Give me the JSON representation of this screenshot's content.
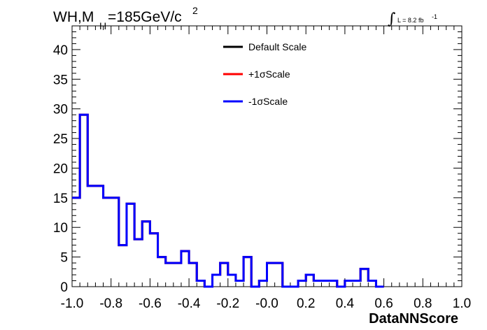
{
  "chart_data": {
    "type": "line",
    "title_main": "WH,M",
    "title_sub": "H",
    "title_rest": "=185GeV/c",
    "title_sup": "2",
    "lumi_symbol": "∫",
    "lumi_label": "L = 8.2 fb",
    "lumi_sup": "-1",
    "xlabel": "DataNNScore",
    "ylabel": "",
    "xlim": [
      -1.0,
      1.0
    ],
    "ylim": [
      0,
      44
    ],
    "x_ticks": [
      "-1.0",
      "-0.8",
      "-0.6",
      "-0.4",
      "-0.2",
      "-0.0",
      "0.2",
      "0.4",
      "0.6",
      "0.8",
      "1.0"
    ],
    "y_ticks": [
      "0",
      "5",
      "10",
      "15",
      "20",
      "25",
      "30",
      "35",
      "40"
    ],
    "bin_edges_start": -1.0,
    "bin_width": 0.04,
    "legend": [
      {
        "label": "Default Scale",
        "color": "#000000"
      },
      {
        "label": "+1σScale",
        "color": "#ff0000"
      },
      {
        "label": "-1σScale",
        "color": "#0000ff"
      }
    ],
    "series": [
      {
        "name": "Default Scale",
        "color": "#000000",
        "values": [
          15,
          29,
          17,
          17,
          15,
          15,
          7,
          14,
          8,
          11,
          9,
          5,
          4,
          4,
          6,
          4,
          1,
          0,
          2,
          4,
          2,
          1,
          5,
          0,
          1,
          4,
          4,
          0,
          0,
          1,
          2,
          1,
          1,
          1,
          0,
          1,
          1,
          3,
          1,
          0
        ]
      },
      {
        "name": "+1σScale",
        "color": "#ff0000",
        "values": [
          15,
          29,
          17,
          17,
          15,
          15,
          7,
          14,
          8,
          11,
          9,
          5,
          4,
          4,
          6,
          4,
          1,
          0,
          2,
          4,
          2,
          1,
          5,
          0,
          1,
          4,
          4,
          0,
          0,
          1,
          2,
          1,
          1,
          1,
          0,
          1,
          1,
          3,
          1,
          0
        ]
      },
      {
        "name": "-1σScale",
        "color": "#0000ff",
        "values": [
          15,
          29,
          17,
          17,
          15,
          15,
          7,
          14,
          8,
          11,
          9,
          5,
          4,
          4,
          6,
          4,
          1,
          0,
          2,
          4,
          2,
          1,
          5,
          0,
          1,
          4,
          4,
          0,
          0,
          1,
          2,
          1,
          1,
          1,
          0,
          1,
          1,
          3,
          1,
          0
        ]
      }
    ]
  }
}
